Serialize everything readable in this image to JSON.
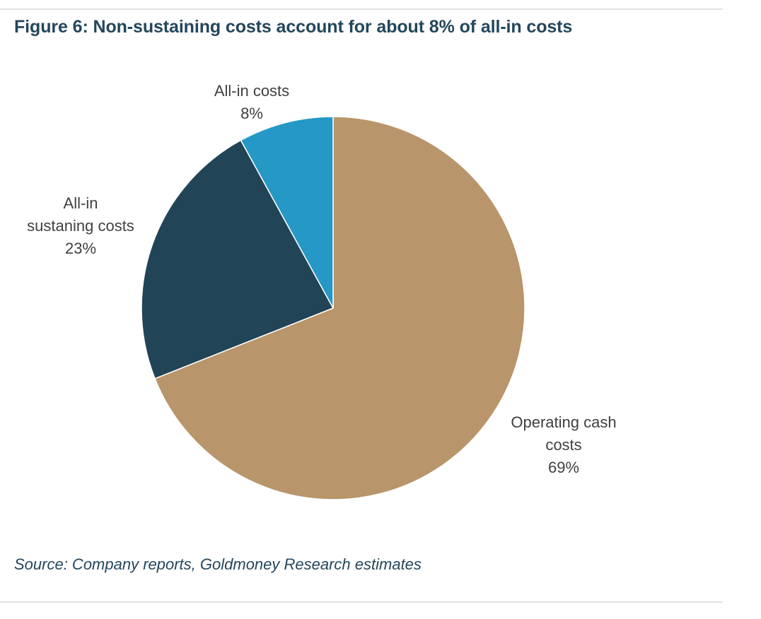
{
  "title": "Figure 6: Non-sustaining costs account for about 8% of all-in costs",
  "source": "Source: Company reports, Goldmoney Research estimates",
  "chart_data": {
    "type": "pie",
    "start_angle_deg": 0,
    "direction": "clockwise",
    "slices": [
      {
        "label_lines": [
          "Operating cash",
          "costs"
        ],
        "value": 69,
        "value_label": "69%",
        "color": "#b8956a"
      },
      {
        "label_lines": [
          "All-in",
          "sustaning costs"
        ],
        "value": 23,
        "value_label": "23%",
        "color": "#224457"
      },
      {
        "label_lines": [
          "All-in costs"
        ],
        "value": 8,
        "value_label": "8%",
        "color": "#2598c5"
      }
    ]
  }
}
